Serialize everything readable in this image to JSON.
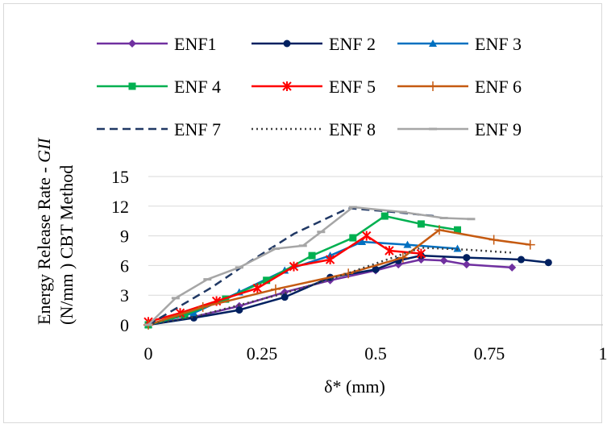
{
  "chart_data": {
    "type": "line",
    "xlabel": "δ* (mm)",
    "ylabel_line1_prefix": "Energy Release Rate - ",
    "ylabel_line1_italic": "GII",
    "ylabel_line2": "(N/mm )  CBT Method",
    "xlim": [
      0,
      1
    ],
    "ylim": [
      0,
      15
    ],
    "xticks": [
      0,
      0.25,
      0.5,
      0.75,
      1
    ],
    "xtick_labels": [
      "0",
      "0.25",
      "0.5",
      "0.75",
      "1"
    ],
    "yticks": [
      0,
      3,
      6,
      9,
      12,
      15
    ],
    "ytick_labels": [
      "0",
      "3",
      "6",
      "9",
      "12",
      "15"
    ],
    "grid": "horizontal",
    "legend_position": "top",
    "series": [
      {
        "name": "ENF1",
        "color": "#7030a0",
        "marker": "diamond",
        "dash": "solid",
        "x": [
          0,
          0.1,
          0.2,
          0.3,
          0.4,
          0.5,
          0.55,
          0.6,
          0.65,
          0.7,
          0.8
        ],
        "y": [
          0,
          0.8,
          1.9,
          3.3,
          4.5,
          5.5,
          6.1,
          6.6,
          6.5,
          6.1,
          5.8
        ]
      },
      {
        "name": "ENF 2",
        "color": "#002060",
        "marker": "circle",
        "dash": "solid",
        "x": [
          0,
          0.1,
          0.2,
          0.3,
          0.4,
          0.5,
          0.55,
          0.6,
          0.7,
          0.82,
          0.88
        ],
        "y": [
          0,
          0.7,
          1.5,
          2.8,
          4.8,
          5.6,
          6.5,
          7.0,
          6.8,
          6.6,
          6.3
        ]
      },
      {
        "name": "ENF 3",
        "color": "#0070c0",
        "marker": "triangle",
        "dash": "solid",
        "x": [
          0,
          0.1,
          0.2,
          0.3,
          0.4,
          0.47,
          0.57,
          0.68
        ],
        "y": [
          0,
          1.2,
          3.3,
          5.5,
          7.0,
          8.4,
          8.1,
          7.7
        ]
      },
      {
        "name": "ENF 4",
        "color": "#00b050",
        "marker": "square",
        "dash": "solid",
        "x": [
          0,
          0.08,
          0.17,
          0.26,
          0.36,
          0.45,
          0.52,
          0.6,
          0.68
        ],
        "y": [
          0,
          1.0,
          2.6,
          4.5,
          7.0,
          8.8,
          11.0,
          10.2,
          9.6
        ]
      },
      {
        "name": "ENF 5",
        "color": "#ff0000",
        "marker": "star",
        "dash": "solid",
        "x": [
          0,
          0.07,
          0.15,
          0.24,
          0.32,
          0.4,
          0.48,
          0.53,
          0.6
        ],
        "y": [
          0.3,
          1.2,
          2.4,
          3.7,
          5.9,
          6.6,
          9.0,
          7.5,
          7.2
        ]
      },
      {
        "name": "ENF 6",
        "color": "#c55a11",
        "marker": "plus",
        "dash": "solid",
        "x": [
          0,
          0.12,
          0.28,
          0.44,
          0.56,
          0.64,
          0.76,
          0.84
        ],
        "y": [
          0,
          1.8,
          3.6,
          5.2,
          6.8,
          9.6,
          8.6,
          8.1
        ]
      },
      {
        "name": "ENF 7",
        "color": "#203864",
        "marker": "none",
        "dash": "dashed",
        "x": [
          0,
          0.14,
          0.22,
          0.32,
          0.44,
          0.52,
          0.63
        ],
        "y": [
          0,
          3.8,
          6.3,
          9.2,
          11.8,
          11.5,
          11.0
        ]
      },
      {
        "name": "ENF 8",
        "color": "#404040",
        "marker": "none",
        "dash": "dotted",
        "x": [
          0,
          0.1,
          0.2,
          0.3,
          0.4,
          0.5,
          0.6,
          0.7,
          0.8
        ],
        "y": [
          0,
          0.8,
          2.0,
          3.2,
          4.6,
          6.2,
          7.8,
          7.6,
          7.3
        ]
      },
      {
        "name": "ENF 9",
        "color": "#a6a6a6",
        "marker": "dash",
        "dash": "solid",
        "x": [
          0,
          0.06,
          0.13,
          0.2,
          0.28,
          0.34,
          0.38,
          0.45,
          0.56,
          0.65,
          0.71
        ],
        "y": [
          0,
          2.7,
          4.6,
          5.8,
          7.7,
          8.0,
          9.4,
          11.9,
          11.4,
          10.8,
          10.7
        ]
      }
    ]
  }
}
